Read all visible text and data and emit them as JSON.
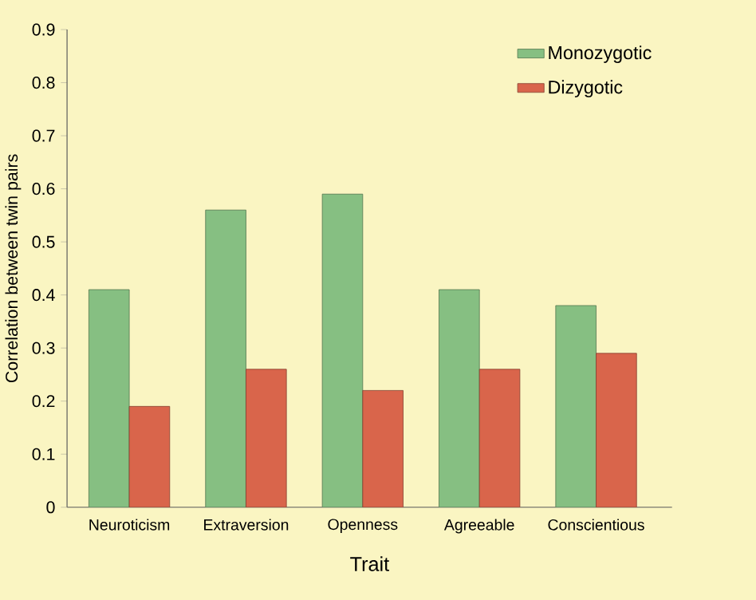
{
  "chart_data": {
    "type": "bar",
    "xlabel": "Trait",
    "ylabel": "Correlation between twin pairs",
    "categories": [
      "Neuroticism",
      "Extraversion",
      "Openness",
      "Agreeable",
      "Conscientious"
    ],
    "series": [
      {
        "name": "Monozygotic",
        "color": "#86bf82",
        "values": [
          0.41,
          0.56,
          0.59,
          0.41,
          0.38
        ]
      },
      {
        "name": "Dizygotic",
        "color": "#d9654b",
        "values": [
          0.19,
          0.26,
          0.22,
          0.26,
          0.29
        ]
      }
    ],
    "ylim": [
      0,
      0.9
    ],
    "yticks": [
      0,
      0.1,
      0.2,
      0.3,
      0.4,
      0.5,
      0.6,
      0.7,
      0.8,
      0.9
    ],
    "legend": "top right"
  }
}
